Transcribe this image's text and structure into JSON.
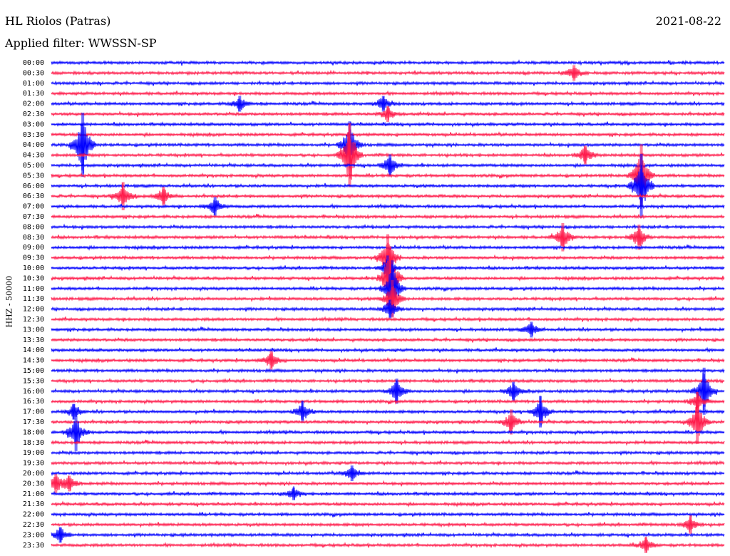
{
  "header": {
    "station": "HL Riolos (Patras)",
    "date": "2021-08-22",
    "filter": "Applied filter: WWSSN-SP"
  },
  "chart_data": {
    "type": "line",
    "title": "HL Riolos (Patras)",
    "ylabel": "HHZ - 50000",
    "colors": {
      "even_rows": "#0000ff",
      "odd_rows": "#ff1a4a"
    },
    "rows": [
      "00:00",
      "00:30",
      "01:00",
      "01:30",
      "02:00",
      "02:30",
      "03:00",
      "03:30",
      "04:00",
      "04:30",
      "05:00",
      "05:30",
      "06:00",
      "06:30",
      "07:00",
      "07:30",
      "08:00",
      "08:30",
      "09:00",
      "09:30",
      "10:00",
      "10:30",
      "11:00",
      "11:30",
      "12:00",
      "12:30",
      "13:00",
      "13:30",
      "14:00",
      "14:30",
      "15:00",
      "15:30",
      "16:00",
      "16:30",
      "17:00",
      "17:30",
      "18:00",
      "18:30",
      "19:00",
      "19:30",
      "20:00",
      "20:30",
      "21:00",
      "21:30",
      "22:00",
      "22:30",
      "23:00",
      "23:30"
    ],
    "events": [
      {
        "row": "00:30",
        "minute": 23.3,
        "amp": 0.5
      },
      {
        "row": "02:00",
        "minute": 8.4,
        "amp": 0.5
      },
      {
        "row": "02:00",
        "minute": 14.8,
        "amp": 0.5
      },
      {
        "row": "02:30",
        "minute": 15.0,
        "amp": 0.5
      },
      {
        "row": "04:00",
        "minute": 1.4,
        "amp": 2.2
      },
      {
        "row": "04:00",
        "minute": 13.3,
        "amp": 1.5
      },
      {
        "row": "04:30",
        "minute": 13.3,
        "amp": 2.2
      },
      {
        "row": "04:30",
        "minute": 23.8,
        "amp": 0.6
      },
      {
        "row": "05:00",
        "minute": 15.1,
        "amp": 0.7
      },
      {
        "row": "05:30",
        "minute": 26.3,
        "amp": 2.0
      },
      {
        "row": "06:00",
        "minute": 26.3,
        "amp": 2.2
      },
      {
        "row": "06:30",
        "minute": 3.2,
        "amp": 0.9
      },
      {
        "row": "06:30",
        "minute": 5.0,
        "amp": 0.6
      },
      {
        "row": "07:00",
        "minute": 7.3,
        "amp": 0.6
      },
      {
        "row": "08:30",
        "minute": 22.8,
        "amp": 0.9
      },
      {
        "row": "08:30",
        "minute": 26.2,
        "amp": 0.8
      },
      {
        "row": "09:30",
        "minute": 15.0,
        "amp": 1.5
      },
      {
        "row": "10:00",
        "minute": 15.0,
        "amp": 0.8
      },
      {
        "row": "10:30",
        "minute": 15.1,
        "amp": 2.3
      },
      {
        "row": "11:00",
        "minute": 15.2,
        "amp": 1.8
      },
      {
        "row": "11:30",
        "minute": 15.2,
        "amp": 1.2
      },
      {
        "row": "12:00",
        "minute": 15.1,
        "amp": 0.6
      },
      {
        "row": "13:00",
        "minute": 21.4,
        "amp": 0.5
      },
      {
        "row": "14:30",
        "minute": 9.8,
        "amp": 0.6
      },
      {
        "row": "16:00",
        "minute": 15.4,
        "amp": 0.8
      },
      {
        "row": "16:00",
        "minute": 20.6,
        "amp": 0.6
      },
      {
        "row": "16:00",
        "minute": 29.1,
        "amp": 1.5
      },
      {
        "row": "16:30",
        "minute": 28.8,
        "amp": 0.6
      },
      {
        "row": "17:00",
        "minute": 1.0,
        "amp": 0.5
      },
      {
        "row": "17:00",
        "minute": 11.2,
        "amp": 0.7
      },
      {
        "row": "17:00",
        "minute": 21.8,
        "amp": 1.0
      },
      {
        "row": "17:30",
        "minute": 20.5,
        "amp": 0.8
      },
      {
        "row": "17:30",
        "minute": 28.8,
        "amp": 1.4
      },
      {
        "row": "18:00",
        "minute": 1.1,
        "amp": 1.2
      },
      {
        "row": "20:00",
        "minute": 13.4,
        "amp": 0.5
      },
      {
        "row": "20:30",
        "minute": 0.2,
        "amp": 0.6
      },
      {
        "row": "20:30",
        "minute": 0.8,
        "amp": 0.5
      },
      {
        "row": "21:00",
        "minute": 10.8,
        "amp": 0.4
      },
      {
        "row": "22:30",
        "minute": 28.5,
        "amp": 0.6
      },
      {
        "row": "23:00",
        "minute": 0.4,
        "amp": 0.5
      },
      {
        "row": "23:30",
        "minute": 26.5,
        "amp": 0.5
      }
    ]
  }
}
